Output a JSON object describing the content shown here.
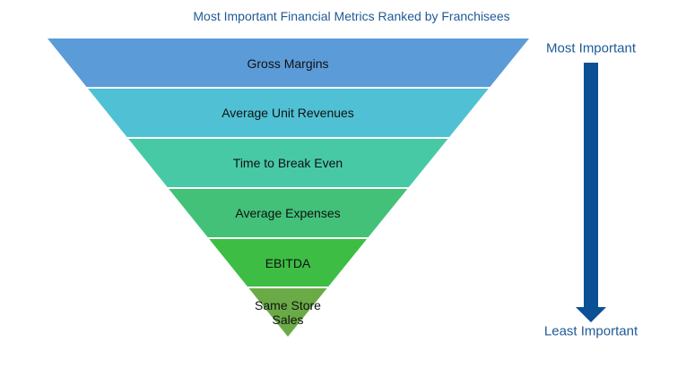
{
  "title": "Most Important Financial Metrics Ranked by Franchisees",
  "levels": [
    {
      "label": "Gross Margins",
      "color": "#5b9bd8"
    },
    {
      "label": "Average Unit Revenues",
      "color": "#50c1d4"
    },
    {
      "label": "Time to Break Even",
      "color": "#48c9a6"
    },
    {
      "label": "Average Expenses",
      "color": "#43c179"
    },
    {
      "label": "EBITDA",
      "color": "#3dbd44"
    },
    {
      "label": "Same Store Sales",
      "color": "#6aab48"
    }
  ],
  "arrow": {
    "top_label": "Most Important",
    "bottom_label": "Least Important",
    "color": "#0b4f94"
  }
}
